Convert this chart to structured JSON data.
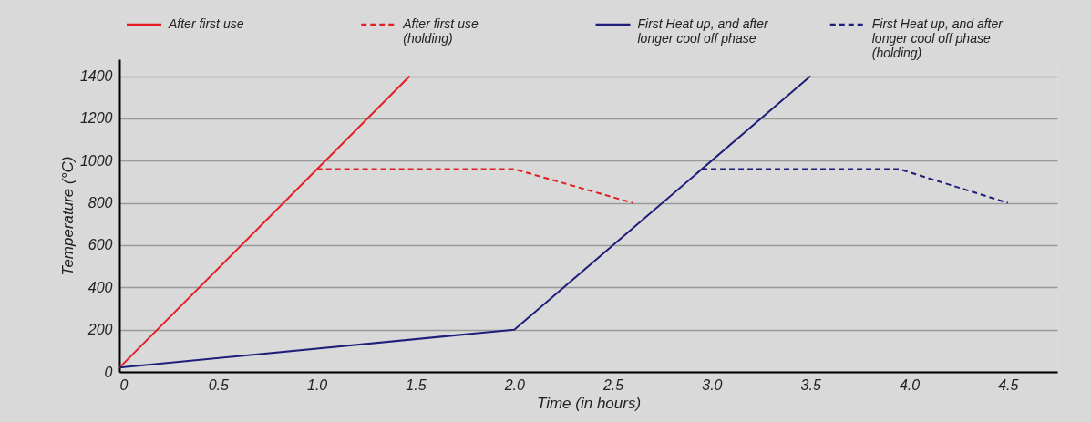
{
  "chart_data": {
    "type": "line",
    "xlabel": "Time (in hours)",
    "ylabel": "Temperature (°C)",
    "series": [
      {
        "name": "After first use",
        "color": "#e31e24",
        "line_style": "solid",
        "x": [
          0,
          1.47
        ],
        "values": [
          20,
          1400
        ]
      },
      {
        "name": "After first use (holding)",
        "color": "#e31e24",
        "line_style": "dashed",
        "x": [
          1.0,
          2.0,
          2.6
        ],
        "values": [
          960,
          960,
          800
        ]
      },
      {
        "name": "First Heat up, and after longer cool off phase",
        "color": "#1f1f7a",
        "line_style": "solid",
        "x": [
          0,
          2.0,
          3.5
        ],
        "values": [
          20,
          200,
          1400
        ]
      },
      {
        "name": "First Heat up, and after longer cool off phase (holding)",
        "color": "#1f1f7a",
        "line_style": "dashed",
        "x": [
          2.95,
          3.95,
          4.5
        ],
        "values": [
          960,
          960,
          800
        ]
      }
    ],
    "xlim": [
      0,
      4.75
    ],
    "ylim": [
      0,
      1480
    ],
    "xticks": [
      0,
      0.5,
      {
        "value": 1,
        "label": "1.0"
      },
      1.5,
      {
        "value": 2,
        "label": "2.0"
      },
      2.5,
      {
        "value": 3,
        "label": "3.0"
      },
      3.5,
      {
        "value": 4,
        "label": "4.0"
      },
      4.5
    ],
    "yticks": [
      0,
      200,
      400,
      600,
      800,
      1000,
      1200,
      1400
    ],
    "grid": "y",
    "legend": "top",
    "marker": "none"
  }
}
